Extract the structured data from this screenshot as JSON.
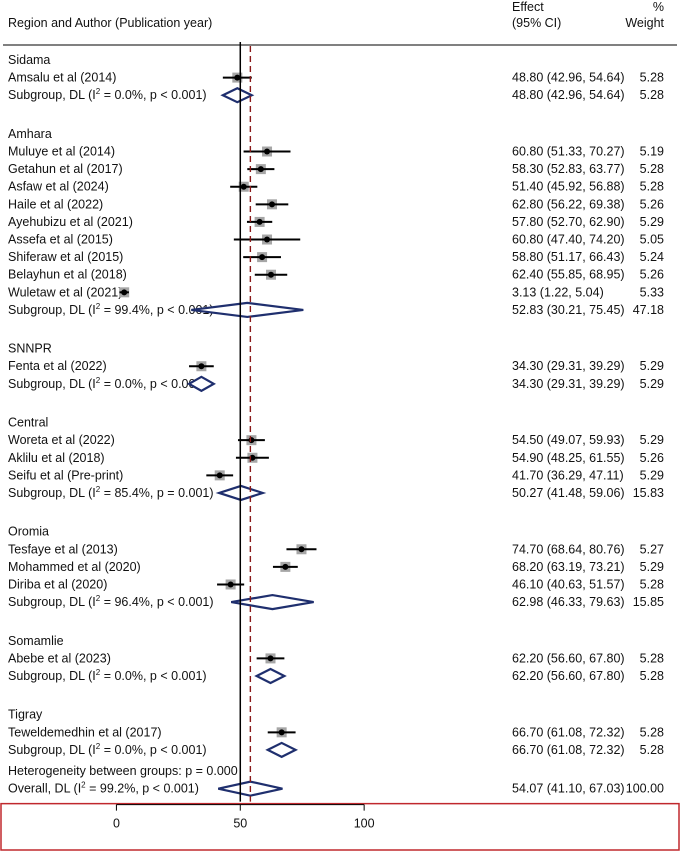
{
  "header": {
    "study_col": "Region and Author (Publication year)",
    "effect_line1": "Effect",
    "effect_line2": "(95% CI)",
    "pct": "%",
    "weight": "Weight"
  },
  "chart_data": {
    "type": "forest",
    "x_ticks": [
      0,
      50,
      100
    ],
    "xlim": [
      -47,
      150
    ],
    "null_line": 50,
    "overall_line": 54.07,
    "colors": {
      "study_point": "#000000",
      "study_box": "#a6a6a6",
      "diamond": "#1f2f6e",
      "overall_line": "#8b1a1a",
      "axis_frame": "#c0282d"
    },
    "groups": [
      {
        "name": "Sidama",
        "studies": [
          {
            "label": "Amsalu et al (2014)",
            "es": 48.8,
            "lo": 42.96,
            "hi": 54.64,
            "ci": "48.80 (42.96, 54.64)",
            "weight": "5.28"
          }
        ],
        "subtotal": {
          "pre": "Subgroup, DL (I",
          "post": " = 0.0%, p < 0.001)",
          "es": 48.8,
          "lo": 42.96,
          "hi": 54.64,
          "ci": "48.80 (42.96, 54.64)",
          "weight": "5.28"
        }
      },
      {
        "name": "Amhara",
        "studies": [
          {
            "label": "Muluye et al (2014)",
            "es": 60.8,
            "lo": 51.33,
            "hi": 70.27,
            "ci": "60.80 (51.33, 70.27)",
            "weight": "5.19"
          },
          {
            "label": "Getahun et al (2017)",
            "es": 58.3,
            "lo": 52.83,
            "hi": 63.77,
            "ci": "58.30 (52.83, 63.77)",
            "weight": "5.28"
          },
          {
            "label": "Asfaw et al (2024)",
            "es": 51.4,
            "lo": 45.92,
            "hi": 56.88,
            "ci": "51.40 (45.92, 56.88)",
            "weight": "5.28"
          },
          {
            "label": "Haile et al (2022)",
            "es": 62.8,
            "lo": 56.22,
            "hi": 69.38,
            "ci": "62.80 (56.22, 69.38)",
            "weight": "5.26"
          },
          {
            "label": "Ayehubizu et al (2021)",
            "es": 57.8,
            "lo": 52.7,
            "hi": 62.9,
            "ci": "57.80 (52.70, 62.90)",
            "weight": "5.29"
          },
          {
            "label": "Assefa et al (2015)",
            "es": 60.8,
            "lo": 47.4,
            "hi": 74.2,
            "ci": "60.80 (47.40, 74.20)",
            "weight": "5.05"
          },
          {
            "label": "Shiferaw et al (2015)",
            "es": 58.8,
            "lo": 51.17,
            "hi": 66.43,
            "ci": "58.80 (51.17, 66.43)",
            "weight": "5.24"
          },
          {
            "label": "Belayhun et al (2018)",
            "es": 62.4,
            "lo": 55.85,
            "hi": 68.95,
            "ci": "62.40 (55.85, 68.95)",
            "weight": "5.26"
          },
          {
            "label": "Wuletaw  et al (2021)",
            "es": 3.13,
            "lo": 1.22,
            "hi": 5.04,
            "ci": "3.13 (1.22, 5.04)",
            "weight": "5.33"
          }
        ],
        "subtotal": {
          "pre": "Subgroup, DL (I",
          "post": " = 99.4%, p < 0.001)",
          "es": 52.83,
          "lo": 30.21,
          "hi": 75.45,
          "ci": "52.83 (30.21, 75.45)",
          "weight": "47.18"
        }
      },
      {
        "name": "SNNPR",
        "studies": [
          {
            "label": "Fenta et al (2022)",
            "es": 34.3,
            "lo": 29.31,
            "hi": 39.29,
            "ci": "34.30 (29.31, 39.29)",
            "weight": "5.29"
          }
        ],
        "subtotal": {
          "pre": "Subgroup, DL (I",
          "post": " = 0.0%, p < 0.001)",
          "es": 34.3,
          "lo": 29.31,
          "hi": 39.29,
          "ci": "34.30 (29.31, 39.29)",
          "weight": "5.29"
        }
      },
      {
        "name": "Central",
        "studies": [
          {
            "label": "Woreta et al (2022)",
            "es": 54.5,
            "lo": 49.07,
            "hi": 59.93,
            "ci": "54.50 (49.07, 59.93)",
            "weight": "5.29"
          },
          {
            "label": "Aklilu  et al (2018)",
            "es": 54.9,
            "lo": 48.25,
            "hi": 61.55,
            "ci": "54.90 (48.25, 61.55)",
            "weight": "5.26"
          },
          {
            "label": "Seifu  et al (Pre-print)",
            "es": 41.7,
            "lo": 36.29,
            "hi": 47.11,
            "ci": "41.70 (36.29, 47.11)",
            "weight": "5.29"
          }
        ],
        "subtotal": {
          "pre": "Subgroup, DL (I",
          "post": " = 85.4%, p = 0.001)",
          "es": 50.27,
          "lo": 41.48,
          "hi": 59.06,
          "ci": "50.27 (41.48, 59.06)",
          "weight": "15.83"
        }
      },
      {
        "name": "Oromia",
        "studies": [
          {
            "label": "Tesfaye et al (2013)",
            "es": 74.7,
            "lo": 68.64,
            "hi": 80.76,
            "ci": "74.70 (68.64, 80.76)",
            "weight": "5.27"
          },
          {
            "label": "Mohammed et al (2020)",
            "es": 68.2,
            "lo": 63.19,
            "hi": 73.21,
            "ci": "68.20 (63.19, 73.21)",
            "weight": "5.29"
          },
          {
            "label": "Diriba  et al (2020)",
            "es": 46.1,
            "lo": 40.63,
            "hi": 51.57,
            "ci": "46.10 (40.63, 51.57)",
            "weight": "5.28"
          }
        ],
        "subtotal": {
          "pre": "Subgroup, DL (I",
          "post": " = 96.4%, p < 0.001)",
          "es": 62.98,
          "lo": 46.33,
          "hi": 79.63,
          "ci": "62.98 (46.33, 79.63)",
          "weight": "15.85"
        }
      },
      {
        "name": "Somamlie",
        "studies": [
          {
            "label": "Abebe et al (2023)",
            "es": 62.2,
            "lo": 56.6,
            "hi": 67.8,
            "ci": "62.20 (56.60, 67.80)",
            "weight": "5.28"
          }
        ],
        "subtotal": {
          "pre": "Subgroup, DL (I",
          "post": " = 0.0%, p < 0.001)",
          "es": 62.2,
          "lo": 56.6,
          "hi": 67.8,
          "ci": "62.20 (56.60, 67.80)",
          "weight": "5.28"
        }
      },
      {
        "name": "Tigray",
        "studies": [
          {
            "label": "Teweldemedhin et al (2017)",
            "es": 66.7,
            "lo": 61.08,
            "hi": 72.32,
            "ci": "66.70 (61.08, 72.32)",
            "weight": "5.28"
          }
        ],
        "subtotal": {
          "pre": "Subgroup, DL (I",
          "post": " = 0.0%, p < 0.001)",
          "es": 66.7,
          "lo": 61.08,
          "hi": 72.32,
          "ci": "66.70 (61.08, 72.32)",
          "weight": "5.28"
        }
      }
    ],
    "heterogeneity": "Heterogeneity between groups: p = 0.000",
    "overall": {
      "pre": "Overall, DL (I",
      "post": " = 99.2%, p < 0.001)",
      "es": 54.07,
      "lo": 41.1,
      "hi": 67.03,
      "ci": "54.07 (41.10, 67.03)",
      "weight": "100.00"
    },
    "superscript": "2"
  }
}
